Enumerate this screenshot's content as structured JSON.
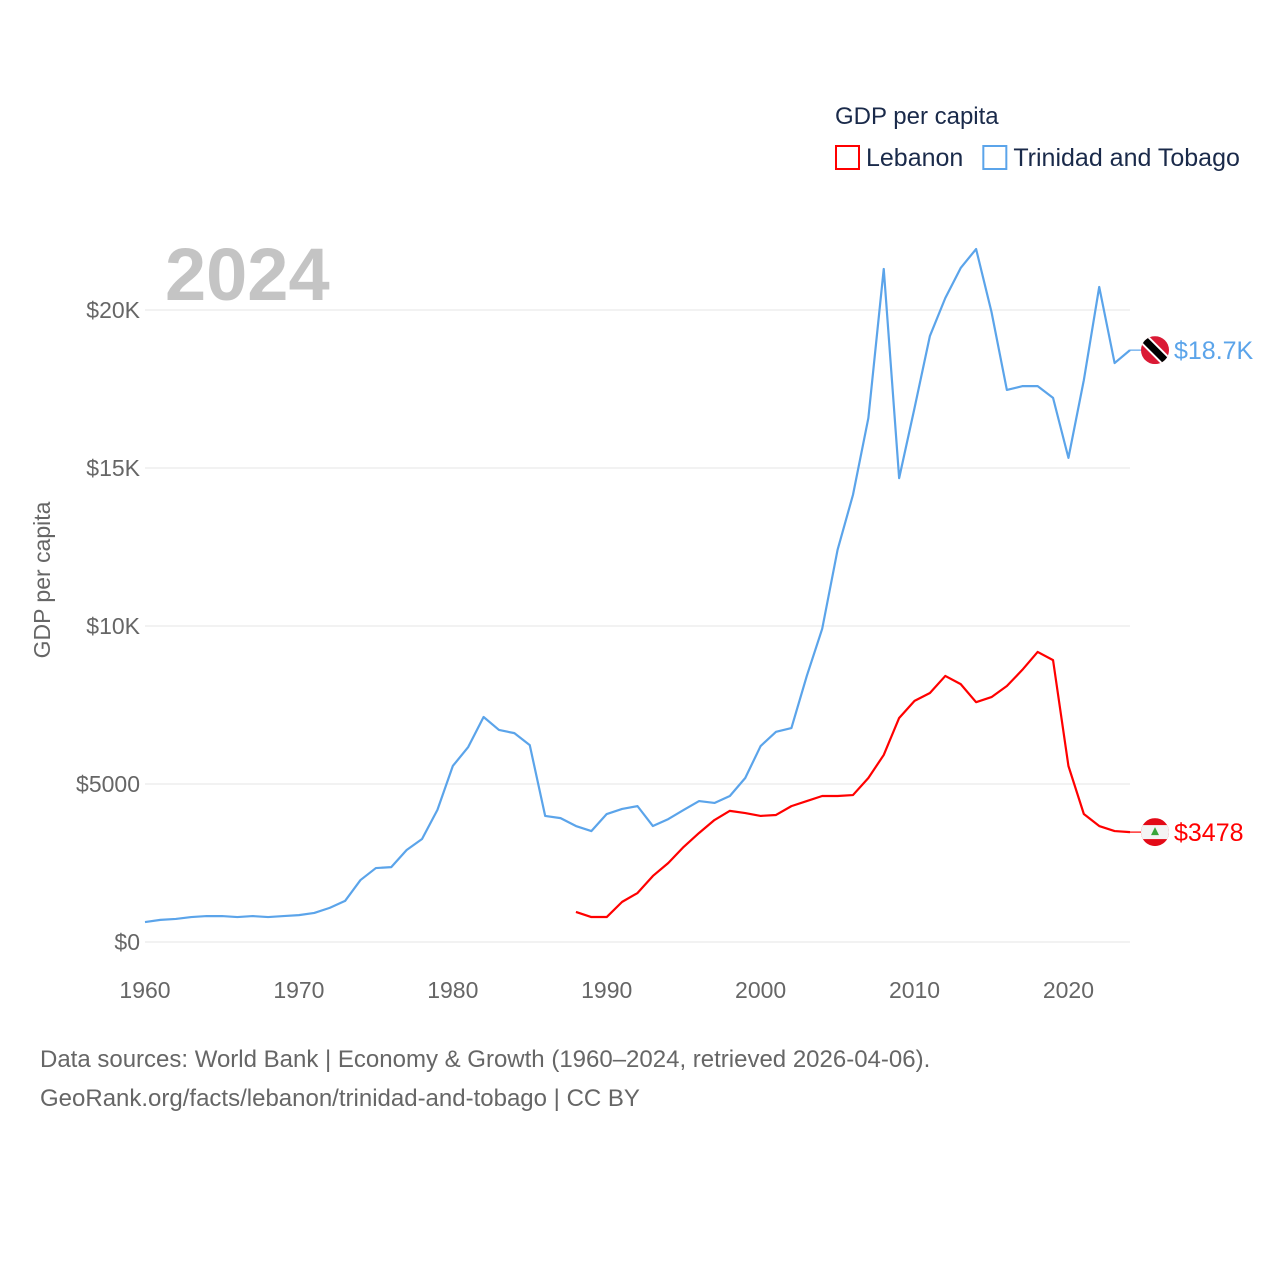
{
  "chart_data": {
    "type": "line",
    "title": "GDP per capita",
    "ylabel": "GDP per capita",
    "xlabel": "",
    "year_label": "2024",
    "xlim": [
      1960,
      2024
    ],
    "ylim": [
      0,
      22500
    ],
    "x_ticks": [
      1960,
      1970,
      1980,
      1990,
      2000,
      2010,
      2020
    ],
    "y_ticks": [
      {
        "v": 0,
        "label": "$0"
      },
      {
        "v": 5000,
        "label": "$5000"
      },
      {
        "v": 10000,
        "label": "$10K"
      },
      {
        "v": 15000,
        "label": "$15K"
      },
      {
        "v": 20000,
        "label": "$20K"
      }
    ],
    "grid": true,
    "legend_position": "top-right",
    "series": [
      {
        "name": "Lebanon",
        "color": "#ff0000",
        "start": 1988,
        "end_label": "$3478",
        "values": [
          950,
          790,
          790,
          1270,
          1550,
          2090,
          2500,
          3010,
          3450,
          3860,
          4150,
          4080,
          3990,
          4020,
          4300,
          4460,
          4620,
          4620,
          4650,
          5190,
          5920,
          7090,
          7630,
          7880,
          8420,
          8160,
          7590,
          7750,
          8100,
          8610,
          9180,
          8920,
          5570,
          4050,
          3670,
          3510,
          3478
        ]
      },
      {
        "name": "Trinidad and Tobago",
        "color": "#5ba4ea",
        "start": 1960,
        "end_label": "$18.7K",
        "values": [
          630,
          700,
          730,
          790,
          820,
          820,
          790,
          820,
          790,
          820,
          850,
          920,
          1080,
          1300,
          1960,
          2340,
          2370,
          2910,
          3260,
          4180,
          5570,
          6170,
          7120,
          6710,
          6610,
          6230,
          3990,
          3920,
          3670,
          3510,
          4050,
          4210,
          4300,
          3670,
          3890,
          4180,
          4460,
          4400,
          4620,
          5190,
          6200,
          6650,
          6770,
          8420,
          9910,
          12410,
          14150,
          16580,
          21300,
          14680,
          16900,
          19180,
          20380,
          21330,
          21930,
          19940,
          17470,
          17590,
          17590,
          17220,
          15320,
          17780,
          20730,
          18320,
          18730
        ]
      }
    ]
  },
  "footer": {
    "line1": "Data sources: World Bank | Economy & Growth (1960–2024, retrieved 2026-04-06).",
    "line2": "GeoRank.org/facts/lebanon/trinidad-and-tobago | CC BY"
  }
}
